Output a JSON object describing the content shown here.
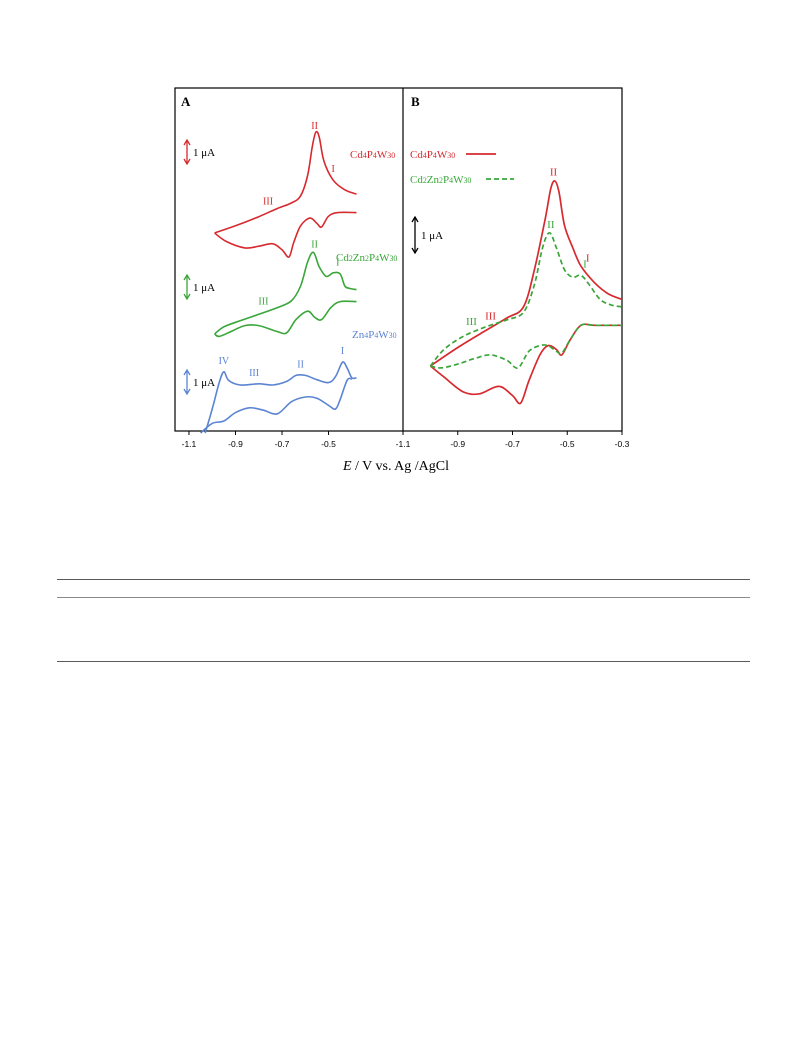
{
  "figure": {
    "xlabel_italic": "E",
    "xlabel_rest": " / V vs. Ag /AgCl",
    "colors": {
      "cd4": "#d62a2f",
      "cd2zn2": "#3aa63a",
      "zn4": "#5b84d2",
      "axis": "#000000"
    }
  },
  "chart_data": [
    {
      "type": "line",
      "panel_label": "A",
      "x_ticks": [
        "-1.1",
        "-0.9",
        "-0.7",
        "-0.5"
      ],
      "xlim": [
        -1.16,
        -0.18
      ],
      "scale_bars": [
        "1 μA",
        "1 μA",
        "1 μA"
      ],
      "series": [
        {
          "name": "Cd4P4W30",
          "color": "#d62a2f",
          "peak_labels": [
            {
              "text": "II",
              "x": -0.56
            },
            {
              "text": "I",
              "x": -0.48
            },
            {
              "text": "III",
              "x": -0.76
            }
          ],
          "upper": [
            [
              -0.99,
              0.0
            ],
            [
              -0.9,
              0.3
            ],
            [
              -0.8,
              0.68
            ],
            [
              -0.72,
              1.02
            ],
            [
              -0.66,
              1.25
            ],
            [
              -0.62,
              1.55
            ],
            [
              -0.59,
              2.4
            ],
            [
              -0.57,
              3.6
            ],
            [
              -0.555,
              4.2
            ],
            [
              -0.54,
              4.0
            ],
            [
              -0.52,
              3.0
            ],
            [
              -0.48,
              2.2
            ],
            [
              -0.43,
              1.8
            ],
            [
              -0.38,
              1.62
            ]
          ],
          "lower": [
            [
              -0.99,
              0.0
            ],
            [
              -0.94,
              -0.35
            ],
            [
              -0.86,
              -0.62
            ],
            [
              -0.8,
              -0.55
            ],
            [
              -0.74,
              -0.45
            ],
            [
              -0.7,
              -0.7
            ],
            [
              -0.67,
              -1.0
            ],
            [
              -0.65,
              -0.4
            ],
            [
              -0.62,
              0.3
            ],
            [
              -0.58,
              0.62
            ],
            [
              -0.55,
              0.4
            ],
            [
              -0.53,
              0.25
            ],
            [
              -0.5,
              0.7
            ],
            [
              -0.46,
              0.85
            ],
            [
              -0.38,
              0.85
            ]
          ]
        },
        {
          "name": "Cd2Zn2P4W30",
          "color": "#3aa63a",
          "peak_labels": [
            {
              "text": "II",
              "x": -0.56
            },
            {
              "text": "I",
              "x": -0.46
            },
            {
              "text": "III",
              "x": -0.78
            }
          ],
          "upper": [
            [
              -0.99,
              0.0
            ],
            [
              -0.95,
              0.3
            ],
            [
              -0.88,
              0.55
            ],
            [
              -0.8,
              0.82
            ],
            [
              -0.72,
              1.1
            ],
            [
              -0.66,
              1.38
            ],
            [
              -0.62,
              2.0
            ],
            [
              -0.59,
              3.0
            ],
            [
              -0.565,
              3.4
            ],
            [
              -0.54,
              2.8
            ],
            [
              -0.51,
              2.4
            ],
            [
              -0.48,
              2.55
            ],
            [
              -0.45,
              2.5
            ],
            [
              -0.43,
              2.0
            ],
            [
              -0.41,
              1.9
            ],
            [
              -0.38,
              1.85
            ]
          ],
          "lower": [
            [
              -0.99,
              0.0
            ],
            [
              -0.97,
              -0.1
            ],
            [
              -0.92,
              0.1
            ],
            [
              -0.86,
              0.35
            ],
            [
              -0.8,
              0.35
            ],
            [
              -0.72,
              0.1
            ],
            [
              -0.68,
              0.05
            ],
            [
              -0.64,
              0.6
            ],
            [
              -0.59,
              0.95
            ],
            [
              -0.56,
              0.7
            ],
            [
              -0.53,
              0.6
            ],
            [
              -0.49,
              1.1
            ],
            [
              -0.45,
              1.35
            ],
            [
              -0.38,
              1.35
            ]
          ]
        },
        {
          "name": "Zn4P4W30",
          "color": "#5b84d2",
          "peak_labels": [
            {
              "text": "IV",
              "x": -0.95
            },
            {
              "text": "III",
              "x": -0.82
            },
            {
              "text": "II",
              "x": -0.62
            },
            {
              "text": "I",
              "x": -0.44
            }
          ],
          "upper": [
            [
              -1.03,
              -2.0
            ],
            [
              -1.0,
              -1.0
            ],
            [
              -0.97,
              0.1
            ],
            [
              -0.95,
              0.55
            ],
            [
              -0.93,
              0.2
            ],
            [
              -0.88,
              0.0
            ],
            [
              -0.8,
              0.05
            ],
            [
              -0.74,
              0.0
            ],
            [
              -0.68,
              0.15
            ],
            [
              -0.64,
              0.4
            ],
            [
              -0.6,
              0.4
            ],
            [
              -0.55,
              0.22
            ],
            [
              -0.5,
              0.1
            ],
            [
              -0.47,
              0.35
            ],
            [
              -0.44,
              0.95
            ],
            [
              -0.42,
              0.7
            ],
            [
              -0.4,
              0.3
            ],
            [
              -0.38,
              0.3
            ]
          ],
          "lower": [
            [
              -1.05,
              -2.0
            ],
            [
              -1.0,
              -1.6
            ],
            [
              -0.95,
              -1.5
            ],
            [
              -0.9,
              -1.15
            ],
            [
              -0.84,
              -0.95
            ],
            [
              -0.78,
              -1.05
            ],
            [
              -0.72,
              -1.2
            ],
            [
              -0.66,
              -0.7
            ],
            [
              -0.6,
              -0.5
            ],
            [
              -0.55,
              -0.55
            ],
            [
              -0.5,
              -0.85
            ],
            [
              -0.47,
              -1.0
            ],
            [
              -0.45,
              -0.6
            ],
            [
              -0.42,
              0.2
            ],
            [
              -0.4,
              0.25
            ]
          ]
        }
      ]
    },
    {
      "type": "line",
      "panel_label": "B",
      "x_ticks": [
        "-1.1",
        "-0.9",
        "-0.7",
        "-0.5",
        "-0.3"
      ],
      "xlim": [
        -1.1,
        -0.3
      ],
      "scale_bars": [
        "1 μA"
      ],
      "series": [
        {
          "name": "Cd4P4W30",
          "color": "#d62a2f",
          "dash": "solid",
          "peak_labels": [
            {
              "text": "II",
              "x": -0.55
            },
            {
              "text": "I",
              "x": -0.44
            },
            {
              "text": "III",
              "x": -0.78
            }
          ],
          "upper": [
            [
              -1.0,
              0.0
            ],
            [
              -0.9,
              0.5
            ],
            [
              -0.8,
              0.95
            ],
            [
              -0.72,
              1.3
            ],
            [
              -0.66,
              1.6
            ],
            [
              -0.62,
              2.6
            ],
            [
              -0.58,
              4.0
            ],
            [
              -0.56,
              4.8
            ],
            [
              -0.545,
              5.0
            ],
            [
              -0.53,
              4.7
            ],
            [
              -0.51,
              3.8
            ],
            [
              -0.48,
              3.2
            ],
            [
              -0.45,
              2.7
            ],
            [
              -0.4,
              2.25
            ],
            [
              -0.35,
              1.95
            ],
            [
              -0.3,
              1.8
            ]
          ],
          "lower": [
            [
              -1.0,
              0.0
            ],
            [
              -0.95,
              -0.3
            ],
            [
              -0.88,
              -0.7
            ],
            [
              -0.82,
              -0.75
            ],
            [
              -0.75,
              -0.55
            ],
            [
              -0.7,
              -0.8
            ],
            [
              -0.67,
              -1.0
            ],
            [
              -0.64,
              -0.4
            ],
            [
              -0.6,
              0.3
            ],
            [
              -0.57,
              0.55
            ],
            [
              -0.54,
              0.45
            ],
            [
              -0.52,
              0.3
            ],
            [
              -0.49,
              0.7
            ],
            [
              -0.45,
              1.1
            ],
            [
              -0.4,
              1.1
            ],
            [
              -0.3,
              1.1
            ]
          ]
        },
        {
          "name": "Cd2Zn2P4W30",
          "color": "#3aa63a",
          "dash": "dashed",
          "peak_labels": [
            {
              "text": "II",
              "x": -0.56
            },
            {
              "text": "I",
              "x": -0.45
            },
            {
              "text": "III",
              "x": -0.85
            }
          ],
          "upper": [
            [
              -1.0,
              0.0
            ],
            [
              -0.95,
              0.45
            ],
            [
              -0.88,
              0.8
            ],
            [
              -0.8,
              1.05
            ],
            [
              -0.72,
              1.25
            ],
            [
              -0.66,
              1.45
            ],
            [
              -0.62,
              2.2
            ],
            [
              -0.59,
              3.2
            ],
            [
              -0.565,
              3.6
            ],
            [
              -0.54,
              3.2
            ],
            [
              -0.51,
              2.6
            ],
            [
              -0.48,
              2.4
            ],
            [
              -0.45,
              2.45
            ],
            [
              -0.42,
              2.2
            ],
            [
              -0.38,
              1.8
            ],
            [
              -0.34,
              1.65
            ],
            [
              -0.3,
              1.6
            ]
          ],
          "lower": [
            [
              -1.0,
              0.0
            ],
            [
              -0.96,
              -0.05
            ],
            [
              -0.9,
              0.05
            ],
            [
              -0.84,
              0.2
            ],
            [
              -0.78,
              0.3
            ],
            [
              -0.72,
              0.15
            ],
            [
              -0.68,
              -0.05
            ],
            [
              -0.64,
              0.4
            ],
            [
              -0.6,
              0.55
            ],
            [
              -0.57,
              0.55
            ],
            [
              -0.54,
              0.4
            ],
            [
              -0.52,
              0.35
            ],
            [
              -0.49,
              0.7
            ],
            [
              -0.45,
              1.1
            ],
            [
              -0.4,
              1.1
            ],
            [
              -0.3,
              1.1
            ]
          ]
        }
      ]
    }
  ]
}
